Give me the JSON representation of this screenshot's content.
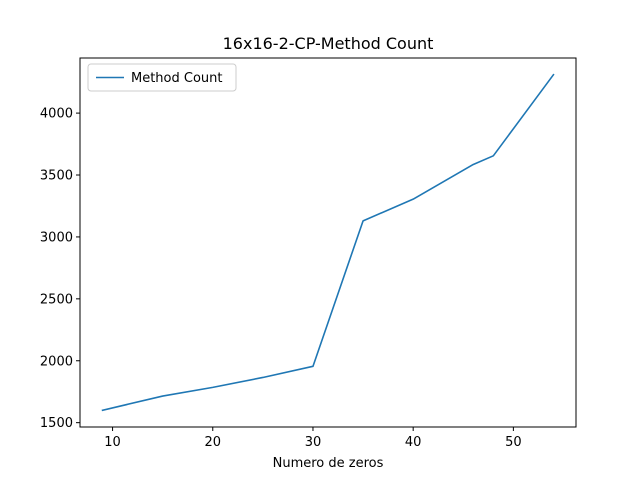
{
  "chart_data": {
    "type": "line",
    "title": "16x16-2-CP-Method Count",
    "xlabel": "Numero de zeros",
    "ylabel": "",
    "xlim": [
      6.75,
      56.25
    ],
    "ylim": [
      1465,
      4445
    ],
    "xticks": [
      10,
      20,
      30,
      40,
      50
    ],
    "yticks": [
      1500,
      2000,
      2500,
      3000,
      3500,
      4000
    ],
    "grid": false,
    "legend_position": "upper left",
    "series": [
      {
        "name": "Method Count",
        "color": "#1f77b4",
        "x": [
          9,
          15,
          20,
          25,
          30,
          35,
          40,
          46,
          48,
          54
        ],
        "y": [
          1600,
          1715,
          1785,
          1865,
          1955,
          3130,
          3305,
          3585,
          3655,
          4310
        ]
      }
    ]
  }
}
